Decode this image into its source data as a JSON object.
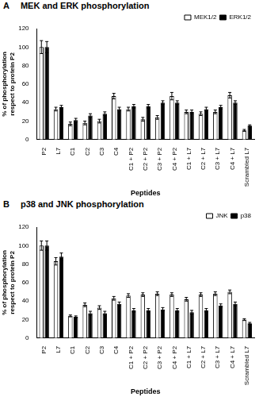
{
  "chart_data": [
    {
      "type": "bar",
      "panel_label": "A",
      "title": "MEK and ERK phosphorylation",
      "xlabel": "Peptides",
      "ylabel": [
        "% of phosphorylation",
        "respect to protein P2"
      ],
      "categories": [
        "P2",
        "L7",
        "C1",
        "C2",
        "C3",
        "C4",
        "C1 + P2",
        "C2 + P2",
        "C3 + P2",
        "C4 + P2",
        "C1 + L7",
        "C2 + L7",
        "C3 + L7",
        "C4 + L7",
        "Scrambled L7"
      ],
      "series": [
        {
          "name": "MEK1/2",
          "color": "#ffffff",
          "values": [
            100,
            33,
            17,
            18,
            20,
            47,
            33,
            22,
            24,
            47,
            30,
            28,
            30,
            48,
            10
          ],
          "errors": [
            7,
            2,
            2,
            2,
            2,
            3,
            2,
            2,
            2,
            4,
            2,
            2,
            2,
            3,
            1
          ]
        },
        {
          "name": "ERK1/2",
          "color": "#000000",
          "values": [
            100,
            35,
            21,
            26,
            28,
            33,
            36,
            36,
            40,
            40,
            30,
            33,
            35,
            40,
            15
          ],
          "errors": [
            6,
            2,
            2,
            2,
            2,
            2,
            2,
            2,
            2,
            2,
            2,
            2,
            2,
            2,
            1
          ]
        }
      ],
      "ylim": [
        0,
        120
      ],
      "yticks": [
        0,
        20,
        40,
        60,
        80,
        100,
        120
      ],
      "grid": false,
      "legend": "upper right"
    },
    {
      "type": "bar",
      "panel_label": "B",
      "title": "p38 and JNK phosphorylation",
      "xlabel": "Peptides",
      "ylabel": [
        "% of phosphorylation",
        "respect to protein P2"
      ],
      "categories": [
        "P2",
        "L7",
        "C1",
        "C2",
        "C3",
        "C4",
        "C1 + P2",
        "C2 + P2",
        "C3 + P2",
        "C4 + P2",
        "C1 + L7",
        "C2 + L7",
        "C3 + L7",
        "C4 + L7",
        "Scrambled L7"
      ],
      "series": [
        {
          "name": "JNK",
          "color": "#ffffff",
          "values": [
            100,
            83,
            24,
            36,
            33,
            43,
            46,
            47,
            48,
            47,
            42,
            47,
            48,
            50,
            20
          ],
          "errors": [
            5,
            4,
            1,
            2,
            2,
            2,
            2,
            2,
            2,
            2,
            2,
            2,
            2,
            2,
            1
          ]
        },
        {
          "name": "p38",
          "color": "#000000",
          "values": [
            100,
            88,
            23,
            27,
            27,
            37,
            30,
            30,
            31,
            30,
            28,
            30,
            35,
            37,
            16
          ],
          "errors": [
            5,
            4,
            1,
            2,
            2,
            2,
            2,
            2,
            2,
            2,
            2,
            2,
            2,
            2,
            1
          ]
        }
      ],
      "ylim": [
        0,
        120
      ],
      "yticks": [
        0,
        20,
        40,
        60,
        80,
        100,
        120
      ],
      "grid": false,
      "legend": "upper right"
    }
  ]
}
